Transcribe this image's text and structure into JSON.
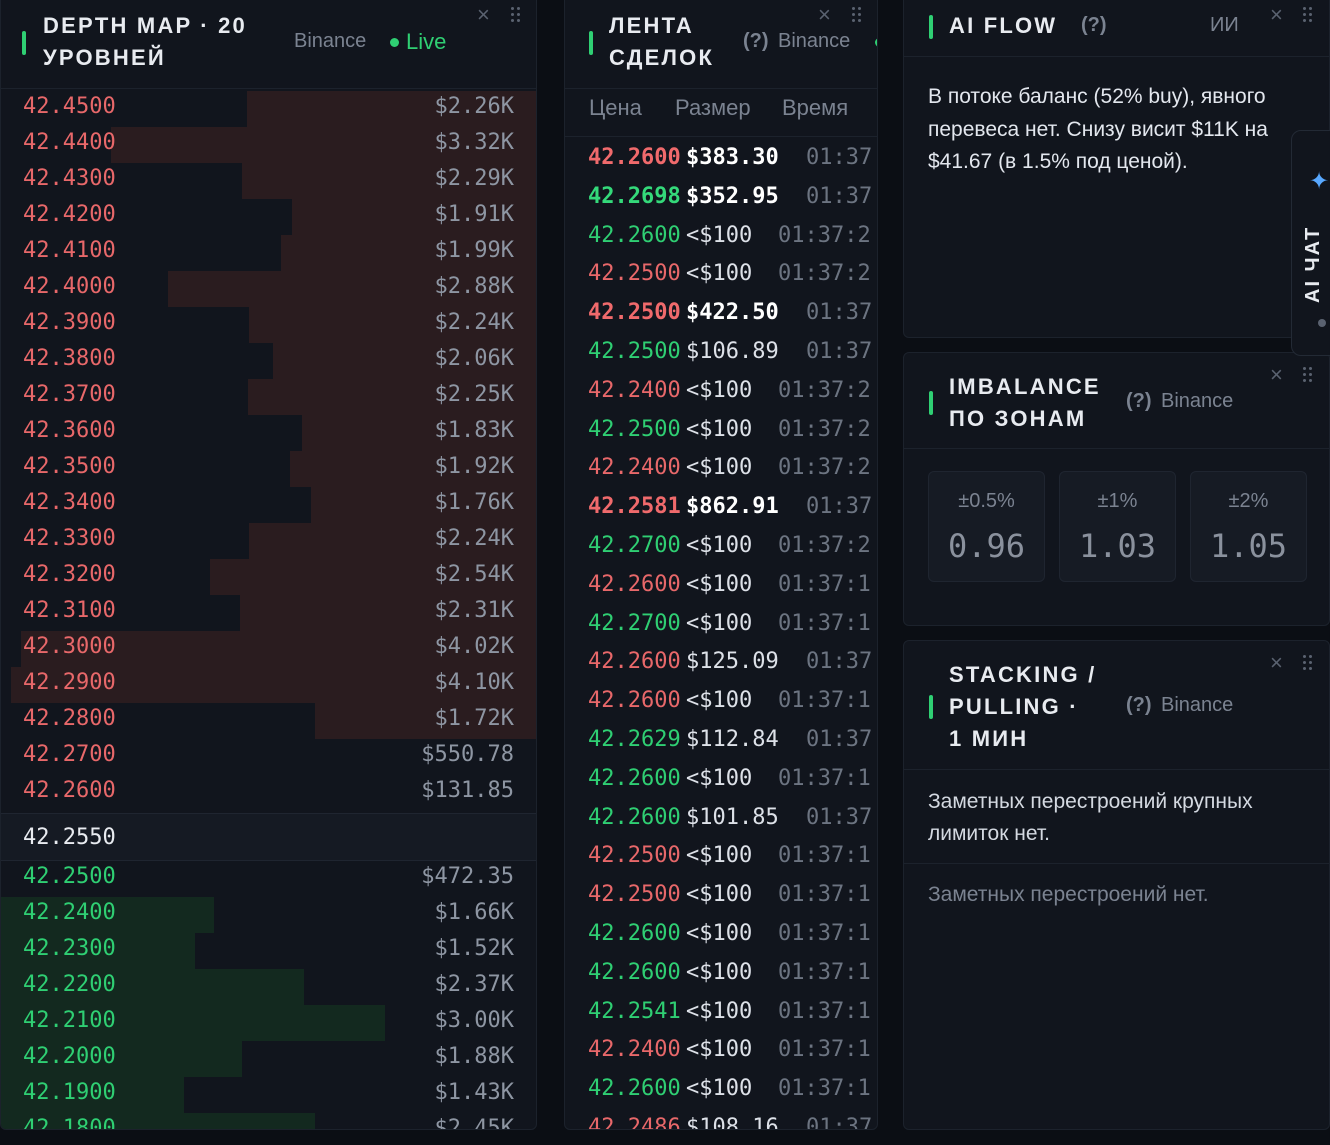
{
  "depth_map": {
    "title": "DEPTH MAP · 20 УРОВНЕЙ",
    "source": "Binance",
    "status": "Live",
    "asks": [
      {
        "price": "42.4500",
        "value": "$2.26K",
        "fill": 0.55
      },
      {
        "price": "42.4400",
        "value": "$3.32K",
        "fill": 0.81
      },
      {
        "price": "42.4300",
        "value": "$2.29K",
        "fill": 0.56
      },
      {
        "price": "42.4200",
        "value": "$1.91K",
        "fill": 0.465
      },
      {
        "price": "42.4100",
        "value": "$1.99K",
        "fill": 0.485
      },
      {
        "price": "42.4000",
        "value": "$2.88K",
        "fill": 0.7
      },
      {
        "price": "42.3900",
        "value": "$2.24K",
        "fill": 0.547
      },
      {
        "price": "42.3800",
        "value": "$2.06K",
        "fill": 0.5
      },
      {
        "price": "42.3700",
        "value": "$2.25K",
        "fill": 0.549
      },
      {
        "price": "42.3600",
        "value": "$1.83K",
        "fill": 0.446
      },
      {
        "price": "42.3500",
        "value": "$1.92K",
        "fill": 0.468
      },
      {
        "price": "42.3400",
        "value": "$1.76K",
        "fill": 0.429
      },
      {
        "price": "42.3300",
        "value": "$2.24K",
        "fill": 0.547
      },
      {
        "price": "42.3200",
        "value": "$2.54K",
        "fill": 0.62
      },
      {
        "price": "42.3100",
        "value": "$2.31K",
        "fill": 0.563
      },
      {
        "price": "42.3000",
        "value": "$4.02K",
        "fill": 0.98
      },
      {
        "price": "42.2900",
        "value": "$4.10K",
        "fill": 1.0
      },
      {
        "price": "42.2800",
        "value": "$1.72K",
        "fill": 0.42
      },
      {
        "price": "42.2700",
        "value": "$550.78",
        "fill": 0.0
      },
      {
        "price": "42.2600",
        "value": "$131.85",
        "fill": 0.0
      }
    ],
    "mid_price": "42.2550",
    "bids": [
      {
        "price": "42.2500",
        "value": "$472.35",
        "fill": 0.0
      },
      {
        "price": "42.2400",
        "value": "$1.66K",
        "fill": 0.405
      },
      {
        "price": "42.2300",
        "value": "$1.52K",
        "fill": 0.37
      },
      {
        "price": "42.2200",
        "value": "$2.37K",
        "fill": 0.578
      },
      {
        "price": "42.2100",
        "value": "$3.00K",
        "fill": 0.732
      },
      {
        "price": "42.2000",
        "value": "$1.88K",
        "fill": 0.459
      },
      {
        "price": "42.1900",
        "value": "$1.43K",
        "fill": 0.349
      },
      {
        "price": "42.1800",
        "value": "$2.45K",
        "fill": 0.598
      }
    ]
  },
  "trades": {
    "title_line1": "ЛЕНТА",
    "title_line2": "СДЕЛОК",
    "help": "(?)",
    "source": "Binance",
    "columns": [
      "Цена",
      "Размер",
      "Время"
    ],
    "rows": [
      {
        "price": "42.2600",
        "size": "$383.30",
        "time": "01:37",
        "side": "sell",
        "big": true
      },
      {
        "price": "42.2698",
        "size": "$352.95",
        "time": "01:37",
        "side": "buy",
        "big": true
      },
      {
        "price": "42.2600",
        "size": "<$100",
        "time": "01:37:2",
        "side": "buy",
        "big": false
      },
      {
        "price": "42.2500",
        "size": "<$100",
        "time": "01:37:2",
        "side": "sell",
        "big": false
      },
      {
        "price": "42.2500",
        "size": "$422.50",
        "time": "01:37",
        "side": "sell",
        "big": true
      },
      {
        "price": "42.2500",
        "size": "$106.89",
        "time": "01:37",
        "side": "buy",
        "big": false
      },
      {
        "price": "42.2400",
        "size": "<$100",
        "time": "01:37:2",
        "side": "sell",
        "big": false
      },
      {
        "price": "42.2500",
        "size": "<$100",
        "time": "01:37:2",
        "side": "buy",
        "big": false
      },
      {
        "price": "42.2400",
        "size": "<$100",
        "time": "01:37:2",
        "side": "sell",
        "big": false
      },
      {
        "price": "42.2581",
        "size": "$862.91",
        "time": "01:37",
        "side": "sell",
        "big": true
      },
      {
        "price": "42.2700",
        "size": "<$100",
        "time": "01:37:2",
        "side": "buy",
        "big": false
      },
      {
        "price": "42.2600",
        "size": "<$100",
        "time": "01:37:1",
        "side": "sell",
        "big": false
      },
      {
        "price": "42.2700",
        "size": "<$100",
        "time": "01:37:1",
        "side": "buy",
        "big": false
      },
      {
        "price": "42.2600",
        "size": "$125.09",
        "time": "01:37",
        "side": "sell",
        "big": false
      },
      {
        "price": "42.2600",
        "size": "<$100",
        "time": "01:37:1",
        "side": "sell",
        "big": false
      },
      {
        "price": "42.2629",
        "size": "$112.84",
        "time": "01:37",
        "side": "buy",
        "big": false
      },
      {
        "price": "42.2600",
        "size": "<$100",
        "time": "01:37:1",
        "side": "buy",
        "big": false
      },
      {
        "price": "42.2600",
        "size": "$101.85",
        "time": "01:37",
        "side": "buy",
        "big": false
      },
      {
        "price": "42.2500",
        "size": "<$100",
        "time": "01:37:1",
        "side": "sell",
        "big": false
      },
      {
        "price": "42.2500",
        "size": "<$100",
        "time": "01:37:1",
        "side": "sell",
        "big": false
      },
      {
        "price": "42.2600",
        "size": "<$100",
        "time": "01:37:1",
        "side": "buy",
        "big": false
      },
      {
        "price": "42.2600",
        "size": "<$100",
        "time": "01:37:1",
        "side": "buy",
        "big": false
      },
      {
        "price": "42.2541",
        "size": "<$100",
        "time": "01:37:1",
        "side": "buy",
        "big": false
      },
      {
        "price": "42.2400",
        "size": "<$100",
        "time": "01:37:1",
        "side": "sell",
        "big": false
      },
      {
        "price": "42.2600",
        "size": "<$100",
        "time": "01:37:1",
        "side": "buy",
        "big": false
      },
      {
        "price": "42.2486",
        "size": "$108.16",
        "time": "01:37",
        "side": "sell",
        "big": false
      }
    ]
  },
  "ai_flow": {
    "title": "AI FLOW",
    "help": "(?)",
    "badge": "ИИ",
    "text": "В потоке баланс (52% buy), явного перевеса нет. Снизу висит $11K на $41.67 (в 1.5% под ценой)."
  },
  "imbalance": {
    "title_line1": "IMBALANCE",
    "title_line2": "ПО ЗОНАМ",
    "help": "(?)",
    "source": "Binance",
    "cards": [
      {
        "label": "±0.5%",
        "value": "0.96"
      },
      {
        "label": "±1%",
        "value": "1.03"
      },
      {
        "label": "±2%",
        "value": "1.05"
      }
    ]
  },
  "stacking": {
    "title_line1": "STACKING /",
    "title_line2": "PULLING ·",
    "title_line3": "1 МИН",
    "help": "(?)",
    "source": "Binance",
    "text1": "Заметных перестроений крупных лимиток нет.",
    "text2": "Заметных перестроений нет."
  },
  "ai_chat": {
    "label": "AI ЧАТ"
  },
  "icons": {
    "close": "×",
    "star": "✦"
  },
  "colors": {
    "accent": "#2fcf73",
    "ask": "#e8686a",
    "bid": "#2fcf73",
    "background": "#0b0e14",
    "panel": "#11151d"
  }
}
